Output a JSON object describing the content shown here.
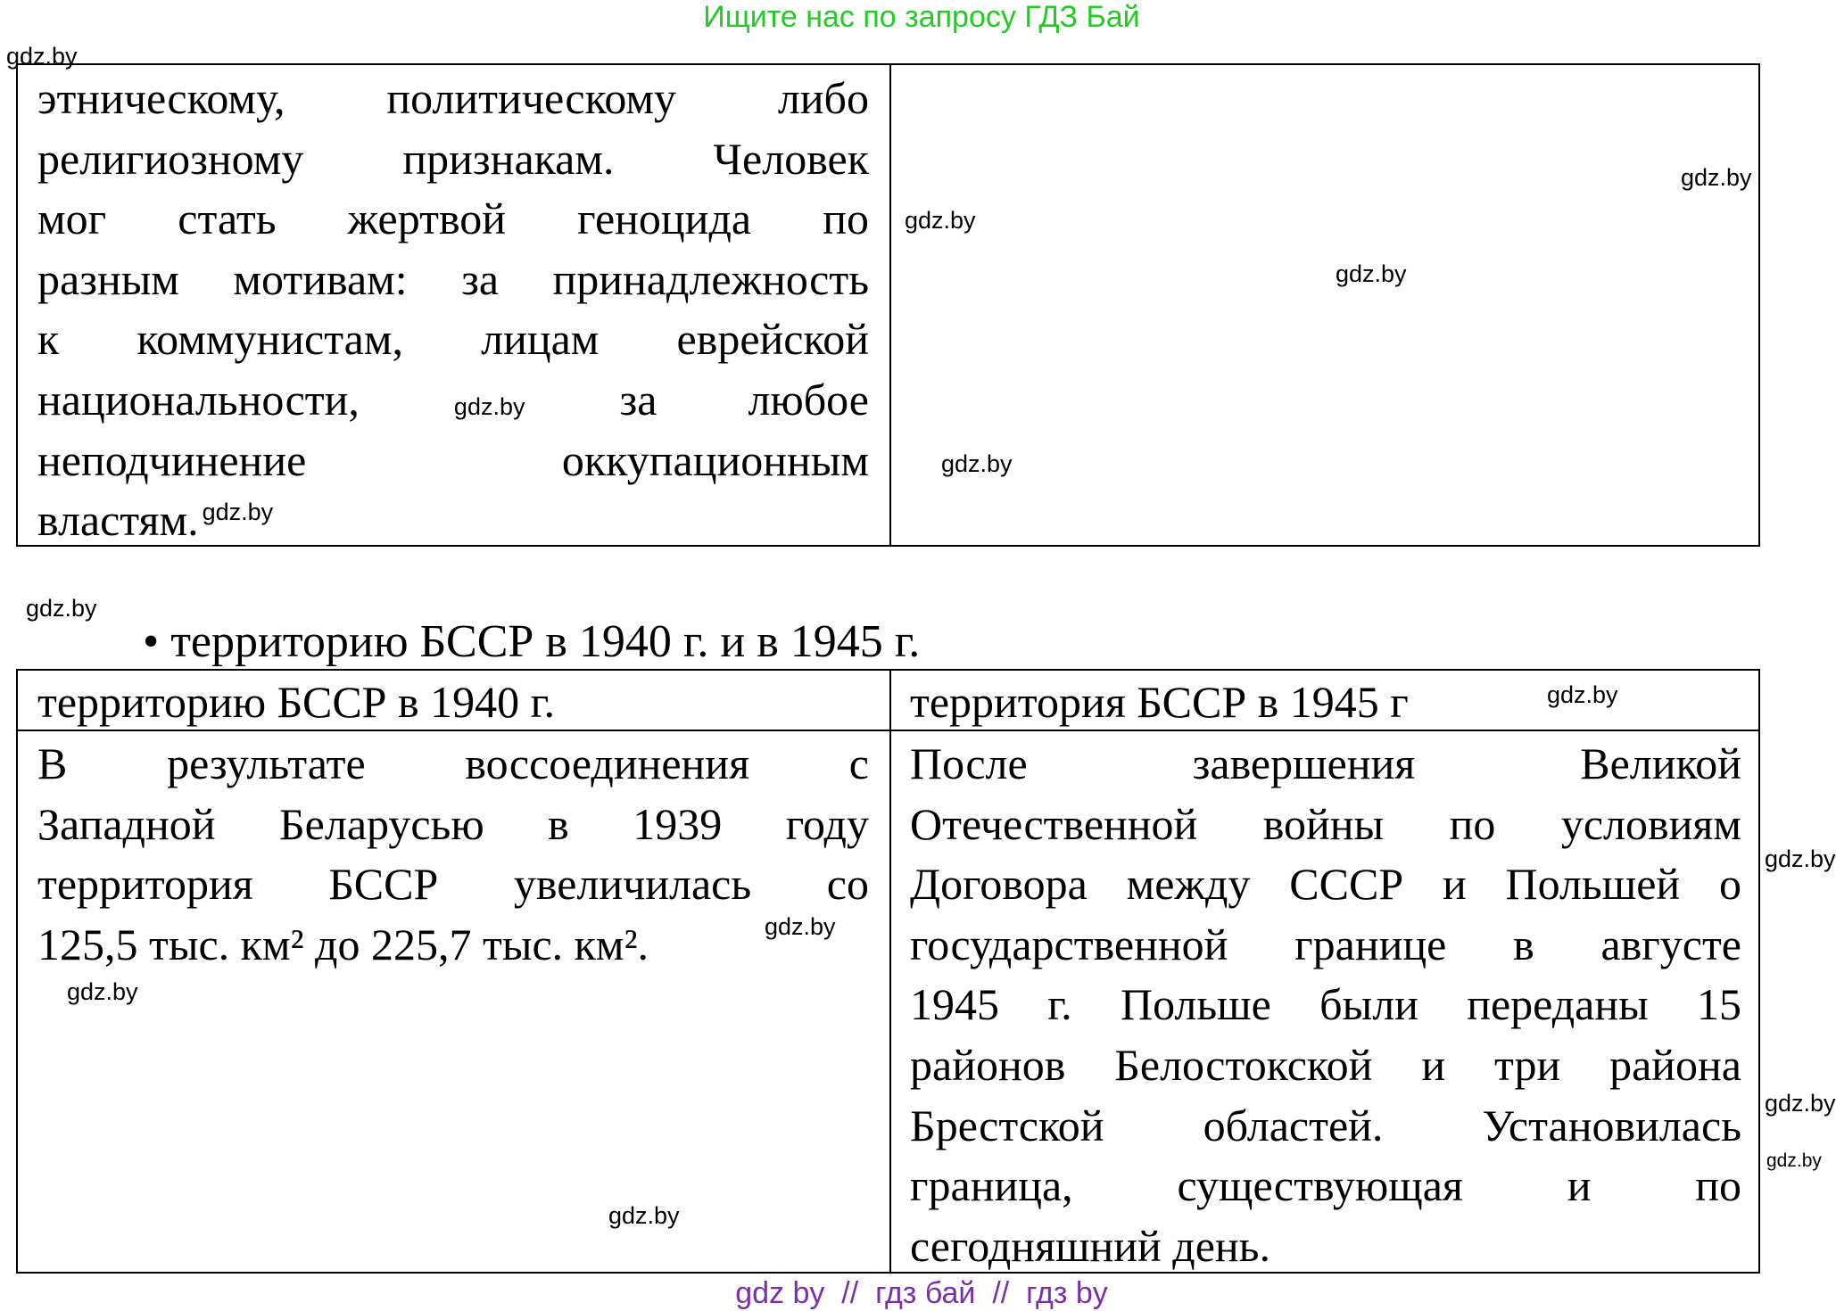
{
  "banner": {
    "text": "Ищите нас по запросу ГДЗ Бай",
    "color": "#22cc22"
  },
  "table1": {
    "left_lines": [
      "этническому, политическому либо",
      "религиозному признакам. Человек",
      "мог стать жертвой геноцида по",
      "разным мотивам: за принадлежность",
      "к коммунистам, лицам еврейской",
      "национальности,          за     любое",
      "неподчинение оккупационным",
      "властям."
    ]
  },
  "bullet": "• территорию БССР в 1940 г. и в 1945 г.",
  "table2": {
    "header_left": "территорию БССР в 1940 г.",
    "header_right": "территория БССР в 1945 г",
    "left_lines": [
      "В результате воссоединения с",
      "Западной Беларусью в 1939 году",
      "территория БССР увеличилась со",
      "125,5 тыс. км² до 225,7 тыс. км²."
    ],
    "right_lines": [
      "После завершения Великой",
      "Отечественной войны по условиям",
      "Договора между СССР и Польшей о",
      "государственной границе в августе",
      "1945 г. Польше были переданы 15",
      "районов Белостокской и три района",
      "Брестской областей. Установилась",
      "граница, существующая и по",
      "сегодняшний день."
    ]
  },
  "watermark": "gdz.by",
  "footer": {
    "text": "gdz by  //  гдз бай  //  гдз by",
    "color": "#7b2fa8"
  }
}
